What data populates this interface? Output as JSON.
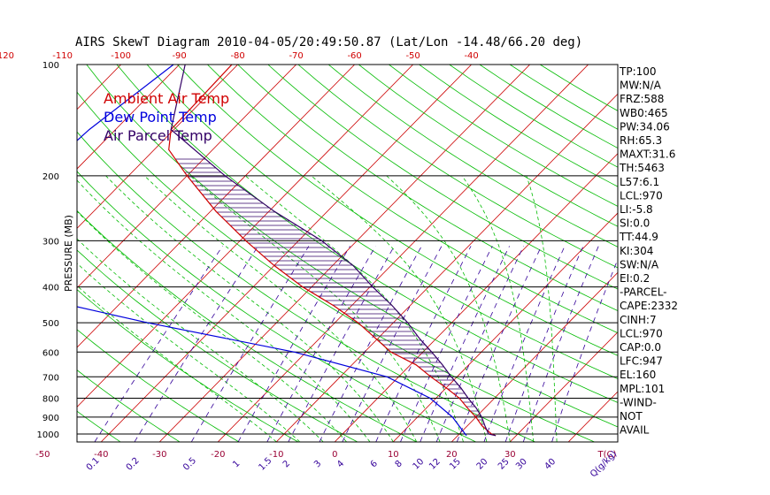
{
  "title": "AIRS SkewT Diagram 2010-04-05/20:49:50.87 (Lat/Lon -14.48/66.20 deg)",
  "colors": {
    "ambient": "#d00000",
    "dewpoint": "#0000dd",
    "parcel": "#330066",
    "isotherm": "#cc0000",
    "dry_adiabat": "#00bb00",
    "moist_adiabat": "#00bb00",
    "mixing_ratio": "#330099",
    "hatch": "#330066",
    "isobar": "#000000",
    "bottom_ticks": "#990033"
  },
  "chart_data": {
    "type": "line",
    "subtype": "skewt",
    "title": "AIRS SkewT Diagram 2010-04-05/20:49:50.87 (Lat/Lon -14.48/66.20 deg)",
    "ylabel": "PRESSURE (MB)",
    "xlabel": "T(C)",
    "yscale": "log",
    "ylim": [
      1050,
      100
    ],
    "pressure_ticks": [
      100,
      200,
      300,
      400,
      500,
      600,
      700,
      800,
      900,
      1000
    ],
    "top_temp_ticks": [
      "-120",
      "-110",
      "-100",
      "-90",
      "-80",
      "-70",
      "-60",
      "-50",
      "-40"
    ],
    "bottom_temp_ticks": [
      "-50",
      "-40",
      "-30",
      "-20",
      "-10",
      "0",
      "10",
      "20",
      "30",
      "T(C)"
    ],
    "mixing_ratio_ticks": [
      "0.1",
      "0.2",
      "0.5",
      "1",
      "1.5",
      "2",
      "3",
      "4",
      "6",
      "8",
      "10",
      "12",
      "15",
      "20",
      "25",
      "30",
      "40",
      "Q(g/kg)"
    ],
    "legend": [
      "Ambient Air Temp",
      "Dew Point Temp",
      "Air Parcel Temp"
    ],
    "legend_position": "top-left",
    "series": [
      {
        "name": "Ambient Air Temp",
        "points": [
          {
            "p": 100,
            "t": -81.0
          },
          {
            "p": 150,
            "t": -80.5
          },
          {
            "p": 170,
            "t": -77.5
          },
          {
            "p": 200,
            "t": -70.0
          },
          {
            "p": 250,
            "t": -59.0
          },
          {
            "p": 300,
            "t": -49.0
          },
          {
            "p": 350,
            "t": -40.0
          },
          {
            "p": 400,
            "t": -31.5
          },
          {
            "p": 450,
            "t": -23.0
          },
          {
            "p": 500,
            "t": -16.0
          },
          {
            "p": 550,
            "t": -10.5
          },
          {
            "p": 600,
            "t": -5.5
          },
          {
            "p": 650,
            "t": 1.0
          },
          {
            "p": 700,
            "t": 5.5
          },
          {
            "p": 750,
            "t": 10.0
          },
          {
            "p": 800,
            "t": 14.0
          },
          {
            "p": 850,
            "t": 17.0
          },
          {
            "p": 900,
            "t": 20.0
          },
          {
            "p": 950,
            "t": 22.5
          },
          {
            "p": 1000,
            "t": 25.5
          },
          {
            "p": 1010,
            "t": 26.5
          }
        ]
      },
      {
        "name": "Dew Point Temp",
        "points": [
          {
            "p": 100,
            "t": -91.0
          },
          {
            "p": 150,
            "t": -94.5
          },
          {
            "p": 200,
            "t": -95.5
          },
          {
            "p": 250,
            "t": -96.0
          },
          {
            "p": 300,
            "t": -103.5
          },
          {
            "p": 400,
            "t": -85.0
          },
          {
            "p": 500,
            "t": -52.0
          },
          {
            "p": 600,
            "t": -22.0
          },
          {
            "p": 700,
            "t": -2.0
          },
          {
            "p": 800,
            "t": 9.0
          },
          {
            "p": 900,
            "t": 16.0
          },
          {
            "p": 1000,
            "t": 21.0
          },
          {
            "p": 1010,
            "t": 21.5
          }
        ]
      },
      {
        "name": "Air Parcel Temp",
        "points": [
          {
            "p": 100,
            "t": -89.0
          },
          {
            "p": 150,
            "t": -80.5
          },
          {
            "p": 200,
            "t": -63.5
          },
          {
            "p": 250,
            "t": -49.0
          },
          {
            "p": 300,
            "t": -36.0
          },
          {
            "p": 350,
            "t": -26.5
          },
          {
            "p": 400,
            "t": -19.5
          },
          {
            "p": 450,
            "t": -13.0
          },
          {
            "p": 500,
            "t": -7.5
          },
          {
            "p": 550,
            "t": -3.0
          },
          {
            "p": 600,
            "t": 1.5
          },
          {
            "p": 650,
            "t": 5.5
          },
          {
            "p": 700,
            "t": 9.0
          },
          {
            "p": 750,
            "t": 12.5
          },
          {
            "p": 800,
            "t": 15.5
          },
          {
            "p": 850,
            "t": 18.5
          },
          {
            "p": 900,
            "t": 21.0
          },
          {
            "p": 950,
            "t": 23.0
          },
          {
            "p": 1000,
            "t": 25.0
          },
          {
            "p": 1010,
            "t": 26.5
          }
        ]
      }
    ]
  },
  "indices": [
    "TP:100",
    "MW:N/A",
    "FRZ:588",
    "WB0:465",
    "PW:34.06",
    "RH:65.3",
    "MAXT:31.6",
    "TH:5463",
    "L57:6.1",
    "LCL:970",
    "LI:-5.8",
    "SI:0.0",
    "TT:44.9",
    "KI:304",
    "SW:N/A",
    "EI:0.2",
    "-PARCEL-",
    "CAPE:2332",
    "CINH:7",
    "LCL:970",
    "CAP:0.0",
    "LFC:947",
    "EL:160",
    "MPL:101",
    "-WIND-",
    "NOT",
    "AVAIL"
  ]
}
